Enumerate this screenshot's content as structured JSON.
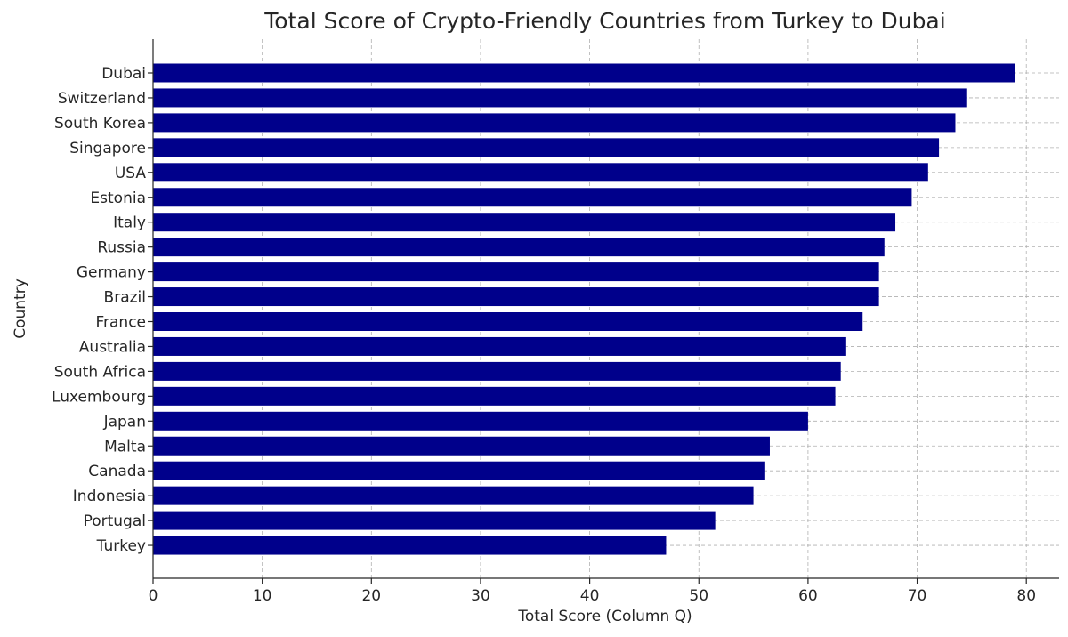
{
  "chart_data": {
    "type": "bar",
    "orientation": "horizontal",
    "title": "Total Score of Crypto-Friendly Countries from Turkey to Dubai",
    "xlabel": "Total Score (Column Q)",
    "ylabel": "Country",
    "xlim": [
      0,
      83
    ],
    "xticks": [
      0,
      10,
      20,
      30,
      40,
      50,
      60,
      70,
      80
    ],
    "grid": true,
    "bar_color": "#00008b",
    "categories": [
      "Dubai",
      "Switzerland",
      "South Korea",
      "Singapore",
      "USA",
      "Estonia",
      "Italy",
      "Russia",
      "Germany",
      "Brazil",
      "France",
      "Australia",
      "South Africa",
      "Luxembourg",
      "Japan",
      "Malta",
      "Canada",
      "Indonesia",
      "Portugal",
      "Turkey"
    ],
    "values": [
      79,
      74.5,
      73.5,
      72,
      71,
      69.5,
      68,
      67,
      66.5,
      66.5,
      65,
      63.5,
      63,
      62.5,
      60,
      56.5,
      56,
      55,
      51.5,
      47
    ]
  }
}
